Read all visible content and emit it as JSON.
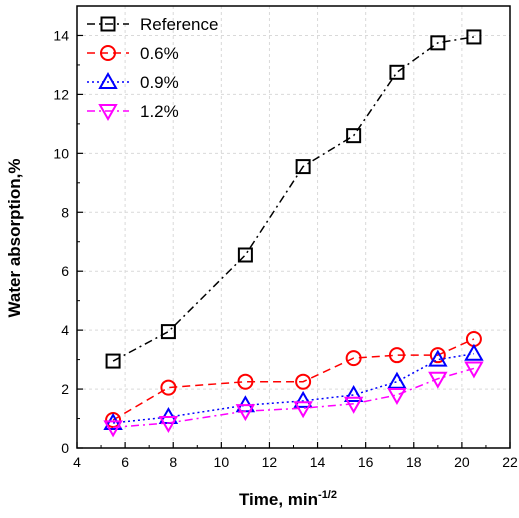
{
  "chart_data": {
    "type": "line",
    "xlabel": "Time, min",
    "xlabel_superscript": "-1/2",
    "ylabel": "Water absorption,%",
    "xlim": [
      4,
      22
    ],
    "ylim": [
      0,
      15
    ],
    "xticks": [
      4,
      6,
      8,
      10,
      12,
      14,
      16,
      18,
      20,
      22
    ],
    "yticks": [
      0,
      2,
      4,
      6,
      8,
      10,
      12,
      14
    ],
    "xtick_labels": [
      "4",
      "6",
      "8",
      "10",
      "12",
      "14",
      "16",
      "18",
      "20",
      "22"
    ],
    "ytick_labels": [
      "0",
      "2",
      "4",
      "6",
      "8",
      "10",
      "12",
      "14"
    ],
    "grid": true,
    "legend_position": "top-left",
    "series": [
      {
        "name": "Reference",
        "color": "#000000",
        "marker": "square",
        "dash": "dash-dot",
        "x": [
          5.5,
          7.8,
          11.0,
          13.4,
          15.5,
          17.3,
          19.0,
          20.5
        ],
        "y": [
          2.95,
          3.95,
          6.55,
          9.55,
          10.6,
          12.75,
          13.75,
          13.95
        ]
      },
      {
        "name": "0.6%",
        "color": "#ff0000",
        "marker": "circle",
        "dash": "dash",
        "x": [
          5.5,
          7.8,
          11.0,
          13.4,
          15.5,
          17.3,
          19.0,
          20.5
        ],
        "y": [
          0.95,
          2.05,
          2.25,
          2.25,
          3.05,
          3.15,
          3.15,
          3.7
        ]
      },
      {
        "name": "0.9%",
        "color": "#0000ff",
        "marker": "triangle-up",
        "dash": "dot",
        "x": [
          5.5,
          7.8,
          11.0,
          13.4,
          15.5,
          17.3,
          19.0,
          20.5
        ],
        "y": [
          0.85,
          1.05,
          1.45,
          1.6,
          1.8,
          2.25,
          3.0,
          3.2
        ]
      },
      {
        "name": "1.2%",
        "color": "#ff00ff",
        "marker": "triangle-down",
        "dash": "dash-dot",
        "x": [
          5.5,
          7.8,
          11.0,
          13.4,
          15.5,
          17.3,
          19.0,
          20.5
        ],
        "y": [
          0.7,
          0.85,
          1.25,
          1.35,
          1.5,
          1.8,
          2.35,
          2.7
        ]
      }
    ]
  }
}
